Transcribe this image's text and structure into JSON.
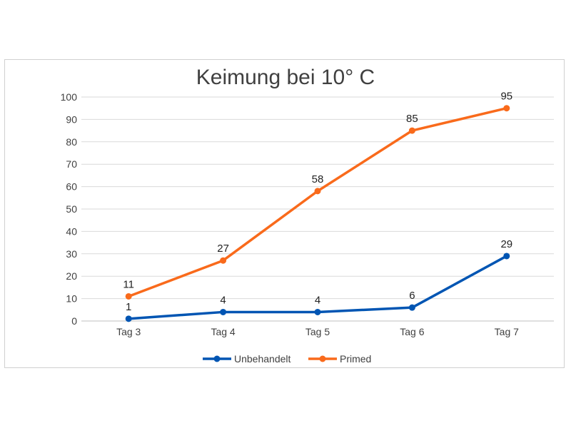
{
  "chart_data": {
    "type": "line",
    "title": "Keimung bei 10° C",
    "xlabel": "",
    "ylabel": "",
    "categories": [
      "Tag 3",
      "Tag 4",
      "Tag 5",
      "Tag 6",
      "Tag 7"
    ],
    "ylim": [
      0,
      100
    ],
    "yticks": [
      0,
      10,
      20,
      30,
      40,
      50,
      60,
      70,
      80,
      90,
      100
    ],
    "grid": true,
    "legend": "bottom",
    "series": [
      {
        "name": "Unbehandelt",
        "values": [
          1,
          4,
          4,
          6,
          29
        ],
        "color": "#0055B3",
        "labels": [
          "1",
          "4",
          "4",
          "6",
          "29"
        ]
      },
      {
        "name": "Primed",
        "values": [
          11,
          27,
          58,
          85,
          95
        ],
        "color": "#F96A1B",
        "labels": [
          "11",
          "27",
          "58",
          "85",
          "95"
        ]
      }
    ]
  }
}
